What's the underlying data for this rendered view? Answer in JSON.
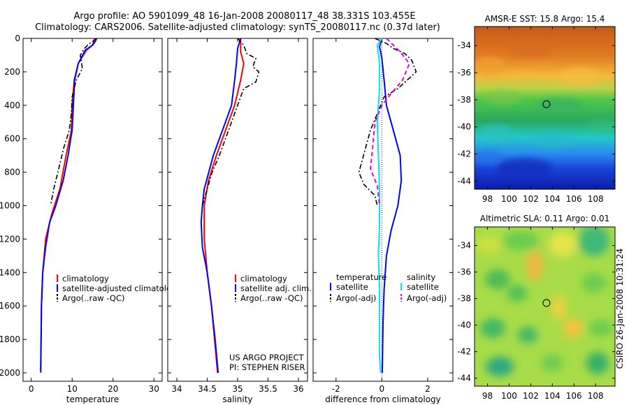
{
  "header": {
    "line1": "Argo profile: AO 5901099_48 16-Jan-2008 20080117_48 38.331S 103.455E",
    "line2": "Climatology: CARS2006. Satellite-adjusted climatology: synTS_20080117.nc (0.37d later)"
  },
  "side_label": "CSIRO 26-Jan-2008 10:31:24",
  "chart_data": [
    {
      "id": "temperature",
      "type": "line",
      "xlabel": "temperature",
      "ylabel": "",
      "xlim": [
        -2,
        32
      ],
      "ylim": [
        2050,
        0
      ],
      "xticks": [
        0,
        10,
        20,
        30
      ],
      "yticks": [
        0,
        200,
        400,
        600,
        800,
        1000,
        1200,
        1400,
        1600,
        1800,
        2000
      ],
      "legend": {
        "position": "lower-right",
        "entries": [
          {
            "label": "climatology",
            "color": "#ff0000",
            "style": "solid"
          },
          {
            "label": "satellite-adjusted climatology",
            "color": "#0000ff",
            "style": "solid"
          },
          {
            "label": "Argo(..raw -QC)",
            "color": "#000000",
            "style": "dashdot"
          }
        ]
      },
      "series": [
        {
          "name": "climatology",
          "color": "#ff0000",
          "dash": "",
          "width": 2,
          "points": [
            [
              15.5,
              0
            ],
            [
              15,
              40
            ],
            [
              13.5,
              70
            ],
            [
              11.5,
              150
            ],
            [
              10.5,
              250
            ],
            [
              10,
              400
            ],
            [
              9.8,
              550
            ],
            [
              8.5,
              700
            ],
            [
              7,
              900
            ],
            [
              5,
              1050
            ],
            [
              3.5,
              1200
            ],
            [
              2.8,
              1400
            ],
            [
              2.5,
              1600
            ],
            [
              2.4,
              1800
            ],
            [
              2.3,
              2000
            ]
          ]
        },
        {
          "name": "satellite-adjusted climatology",
          "color": "#0000ff",
          "dash": "",
          "width": 2,
          "points": [
            [
              16,
              0
            ],
            [
              15.6,
              20
            ],
            [
              15,
              40
            ],
            [
              13.2,
              70
            ],
            [
              11.5,
              150
            ],
            [
              10.6,
              250
            ],
            [
              10.3,
              400
            ],
            [
              10,
              550
            ],
            [
              9,
              700
            ],
            [
              7.8,
              850
            ],
            [
              6,
              1000
            ],
            [
              4.5,
              1100
            ],
            [
              3.5,
              1250
            ],
            [
              2.8,
              1400
            ],
            [
              2.5,
              1600
            ],
            [
              2.4,
              1800
            ],
            [
              2.3,
              1990
            ]
          ]
        },
        {
          "name": "Argo(..raw -QC)",
          "color": "#000000",
          "dash": "7,3,2,3",
          "width": 1.6,
          "points": [
            [
              15.8,
              0
            ],
            [
              15.2,
              15
            ],
            [
              14,
              35
            ],
            [
              13,
              60
            ],
            [
              12,
              100
            ],
            [
              12.5,
              180
            ],
            [
              11,
              250
            ],
            [
              10,
              350
            ],
            [
              9.8,
              450
            ],
            [
              9.3,
              550
            ],
            [
              8,
              650
            ],
            [
              6.5,
              800
            ],
            [
              5.5,
              900
            ],
            [
              4.8,
              990
            ]
          ]
        }
      ]
    },
    {
      "id": "salinity",
      "type": "line",
      "xlabel": "salinity",
      "ylabel": "",
      "xlim": [
        33.85,
        36.15
      ],
      "ylim": [
        2050,
        0
      ],
      "xticks": [
        34,
        34.5,
        35,
        35.5,
        36
      ],
      "yticks": [
        0,
        200,
        400,
        600,
        800,
        1000,
        1200,
        1400,
        1600,
        1800,
        2000
      ],
      "legend": {
        "position": "lower-right",
        "entries": [
          {
            "label": "climatology",
            "color": "#ff0000",
            "style": "solid"
          },
          {
            "label": "satellite adj. clim.",
            "color": "#0000ff",
            "style": "solid"
          },
          {
            "label": "Argo(..raw -QC)",
            "color": "#000000",
            "style": "dashdot"
          }
        ]
      },
      "annotation": [
        "US ARGO PROJECT",
        "PI: STEPHEN RISER"
      ],
      "series": [
        {
          "name": "climatology",
          "color": "#ff0000",
          "dash": "",
          "width": 2,
          "points": [
            [
              35.05,
              0
            ],
            [
              35.05,
              80
            ],
            [
              35.1,
              150
            ],
            [
              35.05,
              250
            ],
            [
              34.95,
              400
            ],
            [
              34.8,
              550
            ],
            [
              34.65,
              700
            ],
            [
              34.52,
              850
            ],
            [
              34.45,
              1000
            ],
            [
              34.45,
              1200
            ],
            [
              34.5,
              1400
            ],
            [
              34.57,
              1600
            ],
            [
              34.62,
              1800
            ],
            [
              34.67,
              2000
            ]
          ]
        },
        {
          "name": "satellite adj. clim.",
          "color": "#0000ff",
          "dash": "",
          "width": 2,
          "points": [
            [
              35.05,
              0
            ],
            [
              35,
              60
            ],
            [
              34.98,
              150
            ],
            [
              34.95,
              250
            ],
            [
              34.9,
              400
            ],
            [
              34.75,
              550
            ],
            [
              34.6,
              700
            ],
            [
              34.45,
              900
            ],
            [
              34.42,
              1000
            ],
            [
              34.4,
              1100
            ],
            [
              34.42,
              1250
            ],
            [
              34.5,
              1400
            ],
            [
              34.57,
              1600
            ],
            [
              34.63,
              1800
            ],
            [
              34.68,
              2000
            ]
          ]
        },
        {
          "name": "Argo(..raw -QC)",
          "color": "#000000",
          "dash": "7,3,2,3",
          "width": 1.6,
          "points": [
            [
              35,
              0
            ],
            [
              35.1,
              40
            ],
            [
              35.15,
              90
            ],
            [
              35.3,
              120
            ],
            [
              35.25,
              170
            ],
            [
              35.35,
              200
            ],
            [
              35.3,
              260
            ],
            [
              35.1,
              300
            ],
            [
              35,
              400
            ],
            [
              34.85,
              550
            ],
            [
              34.7,
              700
            ],
            [
              34.58,
              800
            ],
            [
              34.5,
              900
            ],
            [
              34.42,
              1000
            ]
          ]
        }
      ]
    },
    {
      "id": "difference",
      "type": "line",
      "xlabel": "difference from climatology",
      "ylabel": "",
      "xlim": [
        -3,
        3.1
      ],
      "ylim": [
        2050,
        0
      ],
      "xticks": [
        -2,
        0,
        2
      ],
      "yticks": [
        0,
        200,
        400,
        600,
        800,
        1000,
        1200,
        1400,
        1600,
        1800,
        2000
      ],
      "legend": {
        "position": "lower-center",
        "columns": [
          {
            "title": "temperature",
            "entries": [
              {
                "label": "satellite",
                "color": "#0000ff",
                "style": "solid"
              },
              {
                "label": "Argo(-adj)",
                "color": "#000000",
                "style": "dashdot"
              }
            ]
          },
          {
            "title": "salinity",
            "entries": [
              {
                "label": "satellite",
                "color": "#00e5ee",
                "style": "solid"
              },
              {
                "label": "Argo(-adj)",
                "color": "#ee00ee",
                "style": "dashed"
              }
            ]
          }
        ]
      },
      "series": [
        {
          "name": "temperature satellite",
          "color": "#0000ff",
          "dash": "",
          "width": 2,
          "points": [
            [
              0,
              0
            ],
            [
              -0.1,
              50
            ],
            [
              0,
              120
            ],
            [
              0.1,
              250
            ],
            [
              0.2,
              400
            ],
            [
              0.5,
              550
            ],
            [
              0.8,
              700
            ],
            [
              0.85,
              850
            ],
            [
              0.7,
              1000
            ],
            [
              0.4,
              1150
            ],
            [
              0.2,
              1300
            ],
            [
              0.1,
              1500
            ],
            [
              0.05,
              1700
            ],
            [
              0.02,
              2000
            ]
          ]
        },
        {
          "name": "temperature Argo(-adj)",
          "color": "#000000",
          "dash": "7,3,2,3",
          "width": 1.6,
          "points": [
            [
              -0.3,
              0
            ],
            [
              0.2,
              30
            ],
            [
              0.5,
              60
            ],
            [
              1,
              90
            ],
            [
              1.3,
              130
            ],
            [
              1.5,
              200
            ],
            [
              0.7,
              300
            ],
            [
              0.1,
              350
            ],
            [
              -0.2,
              450
            ],
            [
              -0.5,
              550
            ],
            [
              -0.8,
              700
            ],
            [
              -1,
              800
            ],
            [
              -0.8,
              870
            ],
            [
              -0.3,
              940
            ],
            [
              -0.2,
              1000
            ]
          ]
        },
        {
          "name": "salinity satellite",
          "color": "#00e5ee",
          "dash": "",
          "width": 2,
          "points": [
            [
              0,
              0
            ],
            [
              -0.2,
              40
            ],
            [
              -0.1,
              150
            ],
            [
              -0.1,
              300
            ],
            [
              -0.2,
              500
            ],
            [
              -0.15,
              700
            ],
            [
              -0.1,
              900
            ],
            [
              -0.1,
              1100
            ],
            [
              -0.15,
              1300
            ],
            [
              -0.1,
              1500
            ],
            [
              -0.1,
              1700
            ],
            [
              -0.1,
              1900
            ],
            [
              -0.05,
              2000
            ]
          ]
        },
        {
          "name": "salinity Argo(-adj)",
          "color": "#ee00ee",
          "dash": "6,4",
          "width": 2,
          "points": [
            [
              0.2,
              0
            ],
            [
              0.5,
              40
            ],
            [
              0.8,
              80
            ],
            [
              1.2,
              150
            ],
            [
              0.9,
              250
            ],
            [
              0.4,
              330
            ],
            [
              0,
              400
            ],
            [
              -0.3,
              500
            ],
            [
              -0.4,
              650
            ],
            [
              -0.5,
              780
            ],
            [
              -0.2,
              880
            ],
            [
              -0.1,
              1000
            ]
          ]
        }
      ]
    },
    {
      "id": "sst_map",
      "type": "heatmap",
      "title": "AMSR-E SST: 15.8 Argo: 15.4",
      "xticks": [
        98,
        100,
        102,
        104,
        106,
        108
      ],
      "yticks": [
        -34,
        -36,
        -38,
        -40,
        -42,
        -44
      ],
      "xlim": [
        96.8,
        109.8
      ],
      "ylim": [
        -44.6,
        -32.6
      ],
      "marker": {
        "lon": 103.455,
        "lat": -38.331
      }
    },
    {
      "id": "sla_map",
      "type": "heatmap",
      "title": "Altimetric SLA: 0.11 Argo: 0.01",
      "xticks": [
        98,
        100,
        102,
        104,
        106,
        108
      ],
      "yticks": [
        -34,
        -36,
        -38,
        -40,
        -42,
        -44
      ],
      "xlim": [
        96.8,
        109.8
      ],
      "ylim": [
        -44.6,
        -32.6
      ],
      "marker": {
        "lon": 103.455,
        "lat": -38.331
      }
    }
  ]
}
